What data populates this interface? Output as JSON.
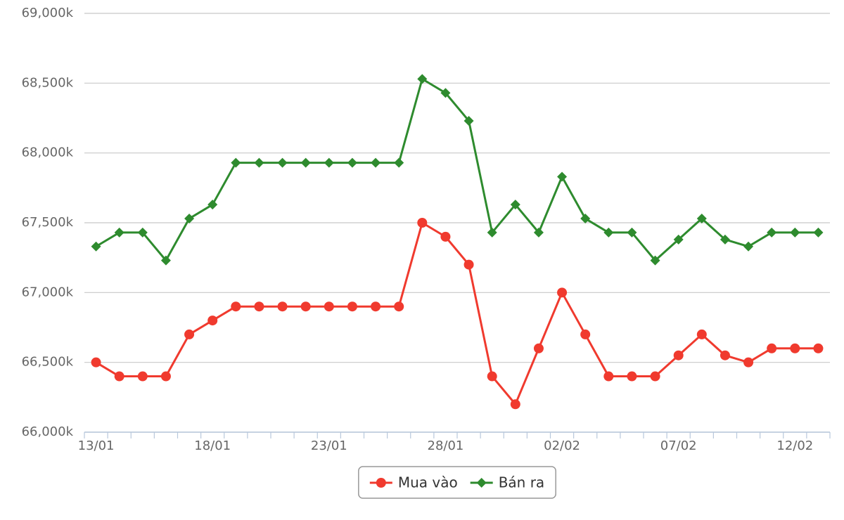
{
  "chart_data": {
    "type": "line",
    "categories": [
      "13/01",
      null,
      null,
      null,
      null,
      "18/01",
      null,
      null,
      null,
      null,
      "23/01",
      null,
      null,
      null,
      null,
      "28/01",
      null,
      null,
      null,
      null,
      "02/02",
      null,
      null,
      null,
      null,
      "07/02",
      null,
      null,
      null,
      null,
      "12/02",
      null
    ],
    "series": [
      {
        "name": "Mua vào",
        "color": "#f03a2e",
        "marker": "circle",
        "values": [
          66500,
          66400,
          66400,
          66400,
          66700,
          66800,
          66900,
          66900,
          66900,
          66900,
          66900,
          66900,
          66900,
          66900,
          67500,
          67400,
          67200,
          66400,
          66200,
          66600,
          67000,
          66700,
          66400,
          66400,
          66400,
          66550,
          66700,
          66550,
          66500,
          66600,
          66600,
          66600
        ]
      },
      {
        "name": "Bán ra",
        "color": "#2e8b2e",
        "marker": "diamond",
        "values": [
          67330,
          67430,
          67430,
          67230,
          67530,
          67630,
          67930,
          67930,
          67930,
          67930,
          67930,
          67930,
          67930,
          67930,
          68530,
          68430,
          68230,
          67430,
          67630,
          67430,
          67830,
          67530,
          67430,
          67430,
          67230,
          67380,
          67530,
          67380,
          67330,
          67430,
          67430,
          67430
        ]
      }
    ],
    "ylim": [
      66000,
      69000
    ],
    "yticks": [
      {
        "value": 66000,
        "label": "66,000k"
      },
      {
        "value": 66500,
        "label": "66,500k"
      },
      {
        "value": 67000,
        "label": "67,000k"
      },
      {
        "value": 67500,
        "label": "67,500k"
      },
      {
        "value": 68000,
        "label": "68,000k"
      },
      {
        "value": 68500,
        "label": "68,500k"
      },
      {
        "value": 69000,
        "label": "69,000k"
      }
    ],
    "grid": true,
    "legend": "bottom"
  }
}
